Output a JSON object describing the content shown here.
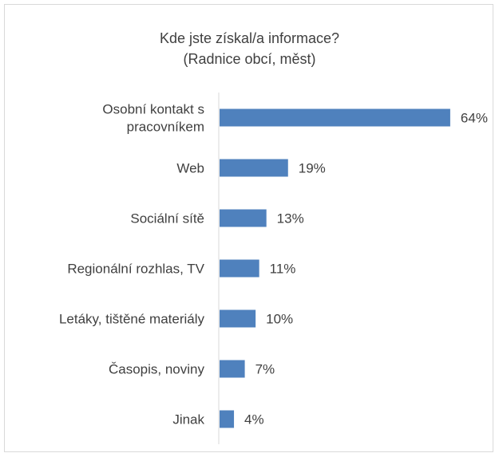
{
  "chart_data": {
    "type": "bar",
    "orientation": "horizontal",
    "title": "Kde jste získal/a informace?",
    "subtitle": "(Radnice obcí, měst)",
    "categories": [
      [
        "Osobní kontakt s",
        "pracovníkem"
      ],
      [
        "Web"
      ],
      [
        "Sociální sítě"
      ],
      [
        "Regionální rozhlas, TV"
      ],
      [
        "Letáky, tištěné materiály"
      ],
      [
        "Časopis, noviny"
      ],
      [
        "Jinak"
      ]
    ],
    "values": [
      64,
      19,
      13,
      11,
      10,
      7,
      4
    ],
    "value_labels": [
      "64%",
      "19%",
      "13%",
      "11%",
      "10%",
      "7%",
      "4%"
    ],
    "value_unit": "%",
    "xlim": [
      0,
      70
    ],
    "bar_color": "#4f81bd",
    "grid": false,
    "legend": "none"
  }
}
